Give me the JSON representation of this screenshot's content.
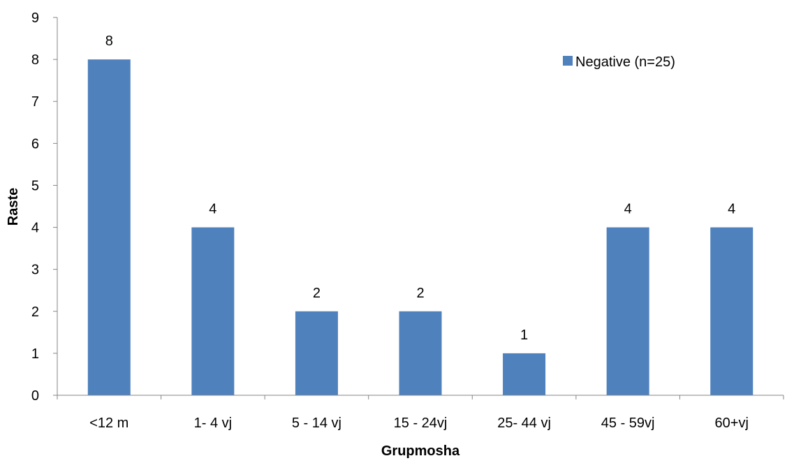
{
  "chart_data": {
    "type": "bar",
    "categories": [
      "<12 m",
      "1- 4 vj",
      "5 - 14 vj",
      "15 - 24vj",
      "25- 44 vj",
      "45 - 59vj",
      "60+vj"
    ],
    "series": [
      {
        "name": "Negative (n=25)",
        "values": [
          8,
          4,
          2,
          2,
          1,
          4,
          4
        ],
        "color": "#4F81BD"
      }
    ],
    "title": "",
    "xlabel": "Grupmosha",
    "ylabel": "Raste",
    "ylim": [
      0,
      9
    ],
    "yticks": [
      0,
      1,
      2,
      3,
      4,
      5,
      6,
      7,
      8,
      9
    ],
    "data_labels": true,
    "grid": false,
    "legend_position": "top-right"
  }
}
